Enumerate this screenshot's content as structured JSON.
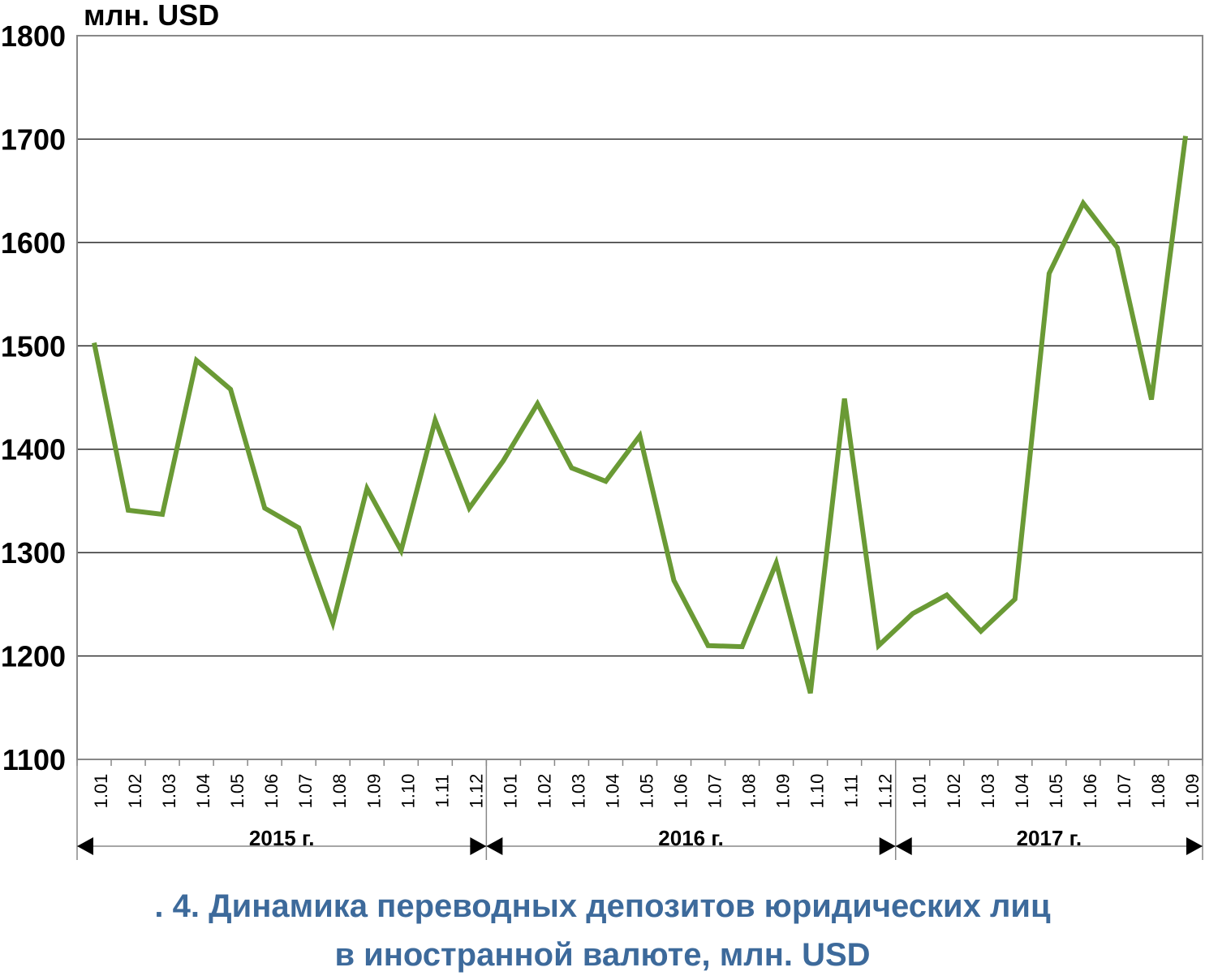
{
  "chart_data": {
    "type": "line",
    "ylabel": "млн. USD",
    "ylim": [
      1100,
      1800
    ],
    "yticks": [
      1100,
      1200,
      1300,
      1400,
      1500,
      1600,
      1700,
      1800
    ],
    "grid": true,
    "categories": [
      "1.01",
      "1.02",
      "1.03",
      "1.04",
      "1.05",
      "1.06",
      "1.07",
      "1.08",
      "1.09",
      "1.10",
      "1.11",
      "1.12",
      "1.01",
      "1.02",
      "1.03",
      "1.04",
      "1.05",
      "1.06",
      "1.07",
      "1.08",
      "1.09",
      "1.10",
      "1.11",
      "1.12",
      "1.01",
      "1.02",
      "1.03",
      "1.04",
      "1.05",
      "1.06",
      "1.07",
      "1.08",
      "1.09"
    ],
    "series": [
      {
        "color": "#6a9a35",
        "values": [
          1503,
          1341,
          1337,
          1486,
          1458,
          1343,
          1324,
          1232,
          1362,
          1302,
          1428,
          1343,
          1389,
          1444,
          1382,
          1369,
          1413,
          1273,
          1210,
          1209,
          1290,
          1164,
          1449,
          1210,
          1241,
          1259,
          1224,
          1255,
          1570,
          1638,
          1595,
          1448,
          1703
        ]
      }
    ],
    "groups": [
      {
        "label": "2015 г.",
        "count": 12
      },
      {
        "label": "2016 г.",
        "count": 12
      },
      {
        "label": "2017 г.",
        "count": 9
      }
    ]
  },
  "caption": {
    "line1": ". 4. Динамика переводных депозитов юридических лиц",
    "line2": "в иностранной валюте, млн. USD"
  },
  "colors": {
    "line": "#6a9a35",
    "caption": "#3d6a9b",
    "grid": "#000000"
  }
}
